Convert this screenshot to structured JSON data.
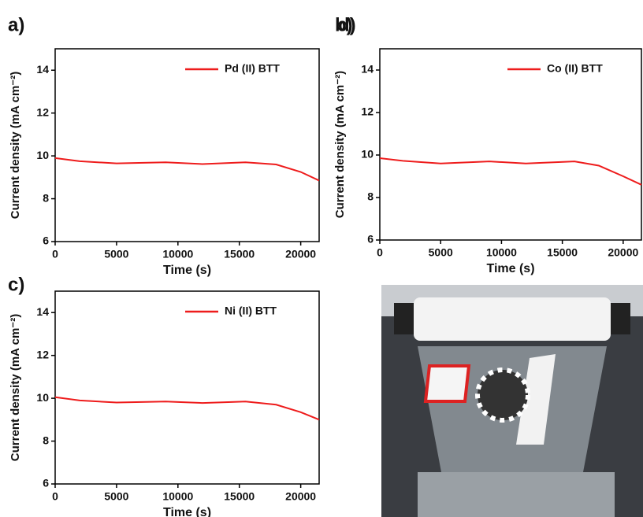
{
  "chart_data": [
    {
      "type": "line",
      "panel_label": "a)",
      "xlabel": "Time (s)",
      "ylabel": "Current density (mA cm⁻²)",
      "x": [
        0,
        2000,
        5000,
        9000,
        12000,
        15500,
        18000,
        20000,
        21500
      ],
      "series": [
        {
          "name": "Pd (II) BTT",
          "color": "#ee1c1c",
          "values": [
            9.9,
            9.75,
            9.65,
            9.7,
            9.62,
            9.7,
            9.6,
            9.25,
            8.85
          ]
        }
      ],
      "xlim": [
        0,
        21500
      ],
      "ylim": [
        6,
        15
      ],
      "xticks": [
        0,
        5000,
        10000,
        15000,
        20000
      ],
      "yticks": [
        6,
        8,
        10,
        12,
        14
      ],
      "legend": "upper right"
    },
    {
      "type": "line",
      "panel_label": "b)",
      "xlabel": "Time (s)",
      "ylabel": "Current density (mA cm⁻²)",
      "x": [
        0,
        2000,
        5000,
        9000,
        12000,
        16000,
        18000,
        20000,
        21500
      ],
      "series": [
        {
          "name": "Co (II) BTT",
          "color": "#ee1c1c",
          "values": [
            9.85,
            9.72,
            9.6,
            9.7,
            9.6,
            9.7,
            9.5,
            9.0,
            8.6
          ]
        }
      ],
      "xlim": [
        0,
        21500
      ],
      "ylim": [
        6,
        15
      ],
      "xticks": [
        0,
        5000,
        10000,
        15000,
        20000
      ],
      "yticks": [
        6,
        8,
        10,
        12,
        14
      ],
      "legend": "upper right"
    },
    {
      "type": "line",
      "panel_label": "c)",
      "xlabel": "Time (s)",
      "ylabel": "Current density (mA cm⁻²)",
      "x": [
        0,
        2000,
        5000,
        9000,
        12000,
        15500,
        18000,
        20000,
        21500
      ],
      "series": [
        {
          "name": "Ni (II) BTT",
          "color": "#ee1c1c",
          "values": [
            10.05,
            9.9,
            9.8,
            9.85,
            9.78,
            9.85,
            9.7,
            9.35,
            9.0
          ]
        }
      ],
      "xlim": [
        0,
        21500
      ],
      "ylim": [
        6,
        15
      ],
      "xticks": [
        0,
        5000,
        10000,
        15000,
        20000
      ],
      "yticks": [
        6,
        8,
        10,
        12,
        14
      ],
      "legend": "upper right"
    }
  ],
  "photo": {
    "panel_label": "d)"
  }
}
